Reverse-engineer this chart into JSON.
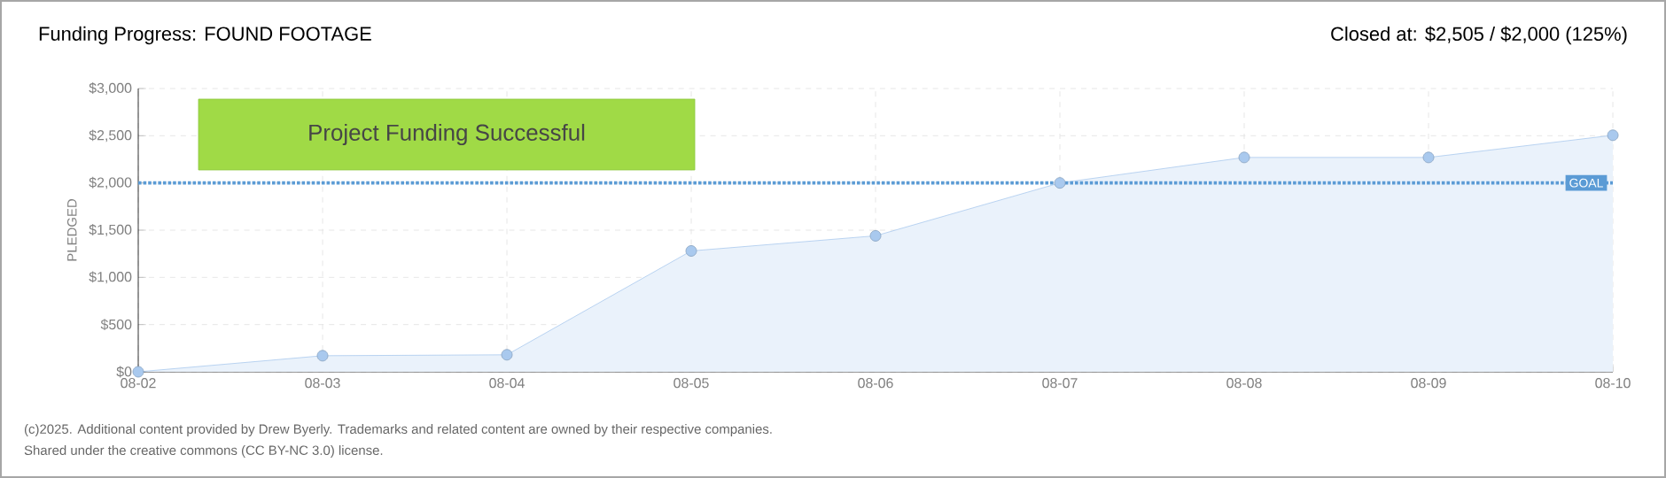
{
  "chart_data": {
    "type": "area",
    "title": "Funding Progress: FOUND FOOTAGE",
    "subtitle": "Closed at: $2,505 / $2,000 (125%)",
    "ylabel": "PLEDGED",
    "categories": [
      "08-02",
      "08-03",
      "08-04",
      "08-05",
      "08-06",
      "08-07",
      "08-08",
      "08-09",
      "08-10"
    ],
    "series": [
      {
        "color": "#a9c9ee",
        "values": [
          0,
          170,
          180,
          1280,
          1440,
          2000,
          2270,
          2270,
          2505
        ]
      }
    ],
    "ylim": [
      0,
      3000
    ],
    "yticks": [
      {
        "value": 0,
        "label": "$0"
      },
      {
        "value": 500,
        "label": "$500"
      },
      {
        "value": 1000,
        "label": "$1,000"
      },
      {
        "value": 1500,
        "label": "$1,500"
      },
      {
        "value": 2000,
        "label": "$2,000"
      },
      {
        "value": 2500,
        "label": "$2,500"
      },
      {
        "value": 3000,
        "label": "$3,000"
      }
    ],
    "grid": true,
    "marker": "circle",
    "ref_lines": [
      {
        "axis": "y",
        "value": 2000,
        "label": "GOAL",
        "color": "#5b9bd5",
        "line_style": "dotted"
      }
    ],
    "annotations": [
      "Project Funding Successful",
      "(c)2025. Additional content provided by Drew Byerly. Trademarks and related content are owned by their respective companies.",
      "Shared under the creative commons (CC BY-NC 3.0) license."
    ]
  }
}
